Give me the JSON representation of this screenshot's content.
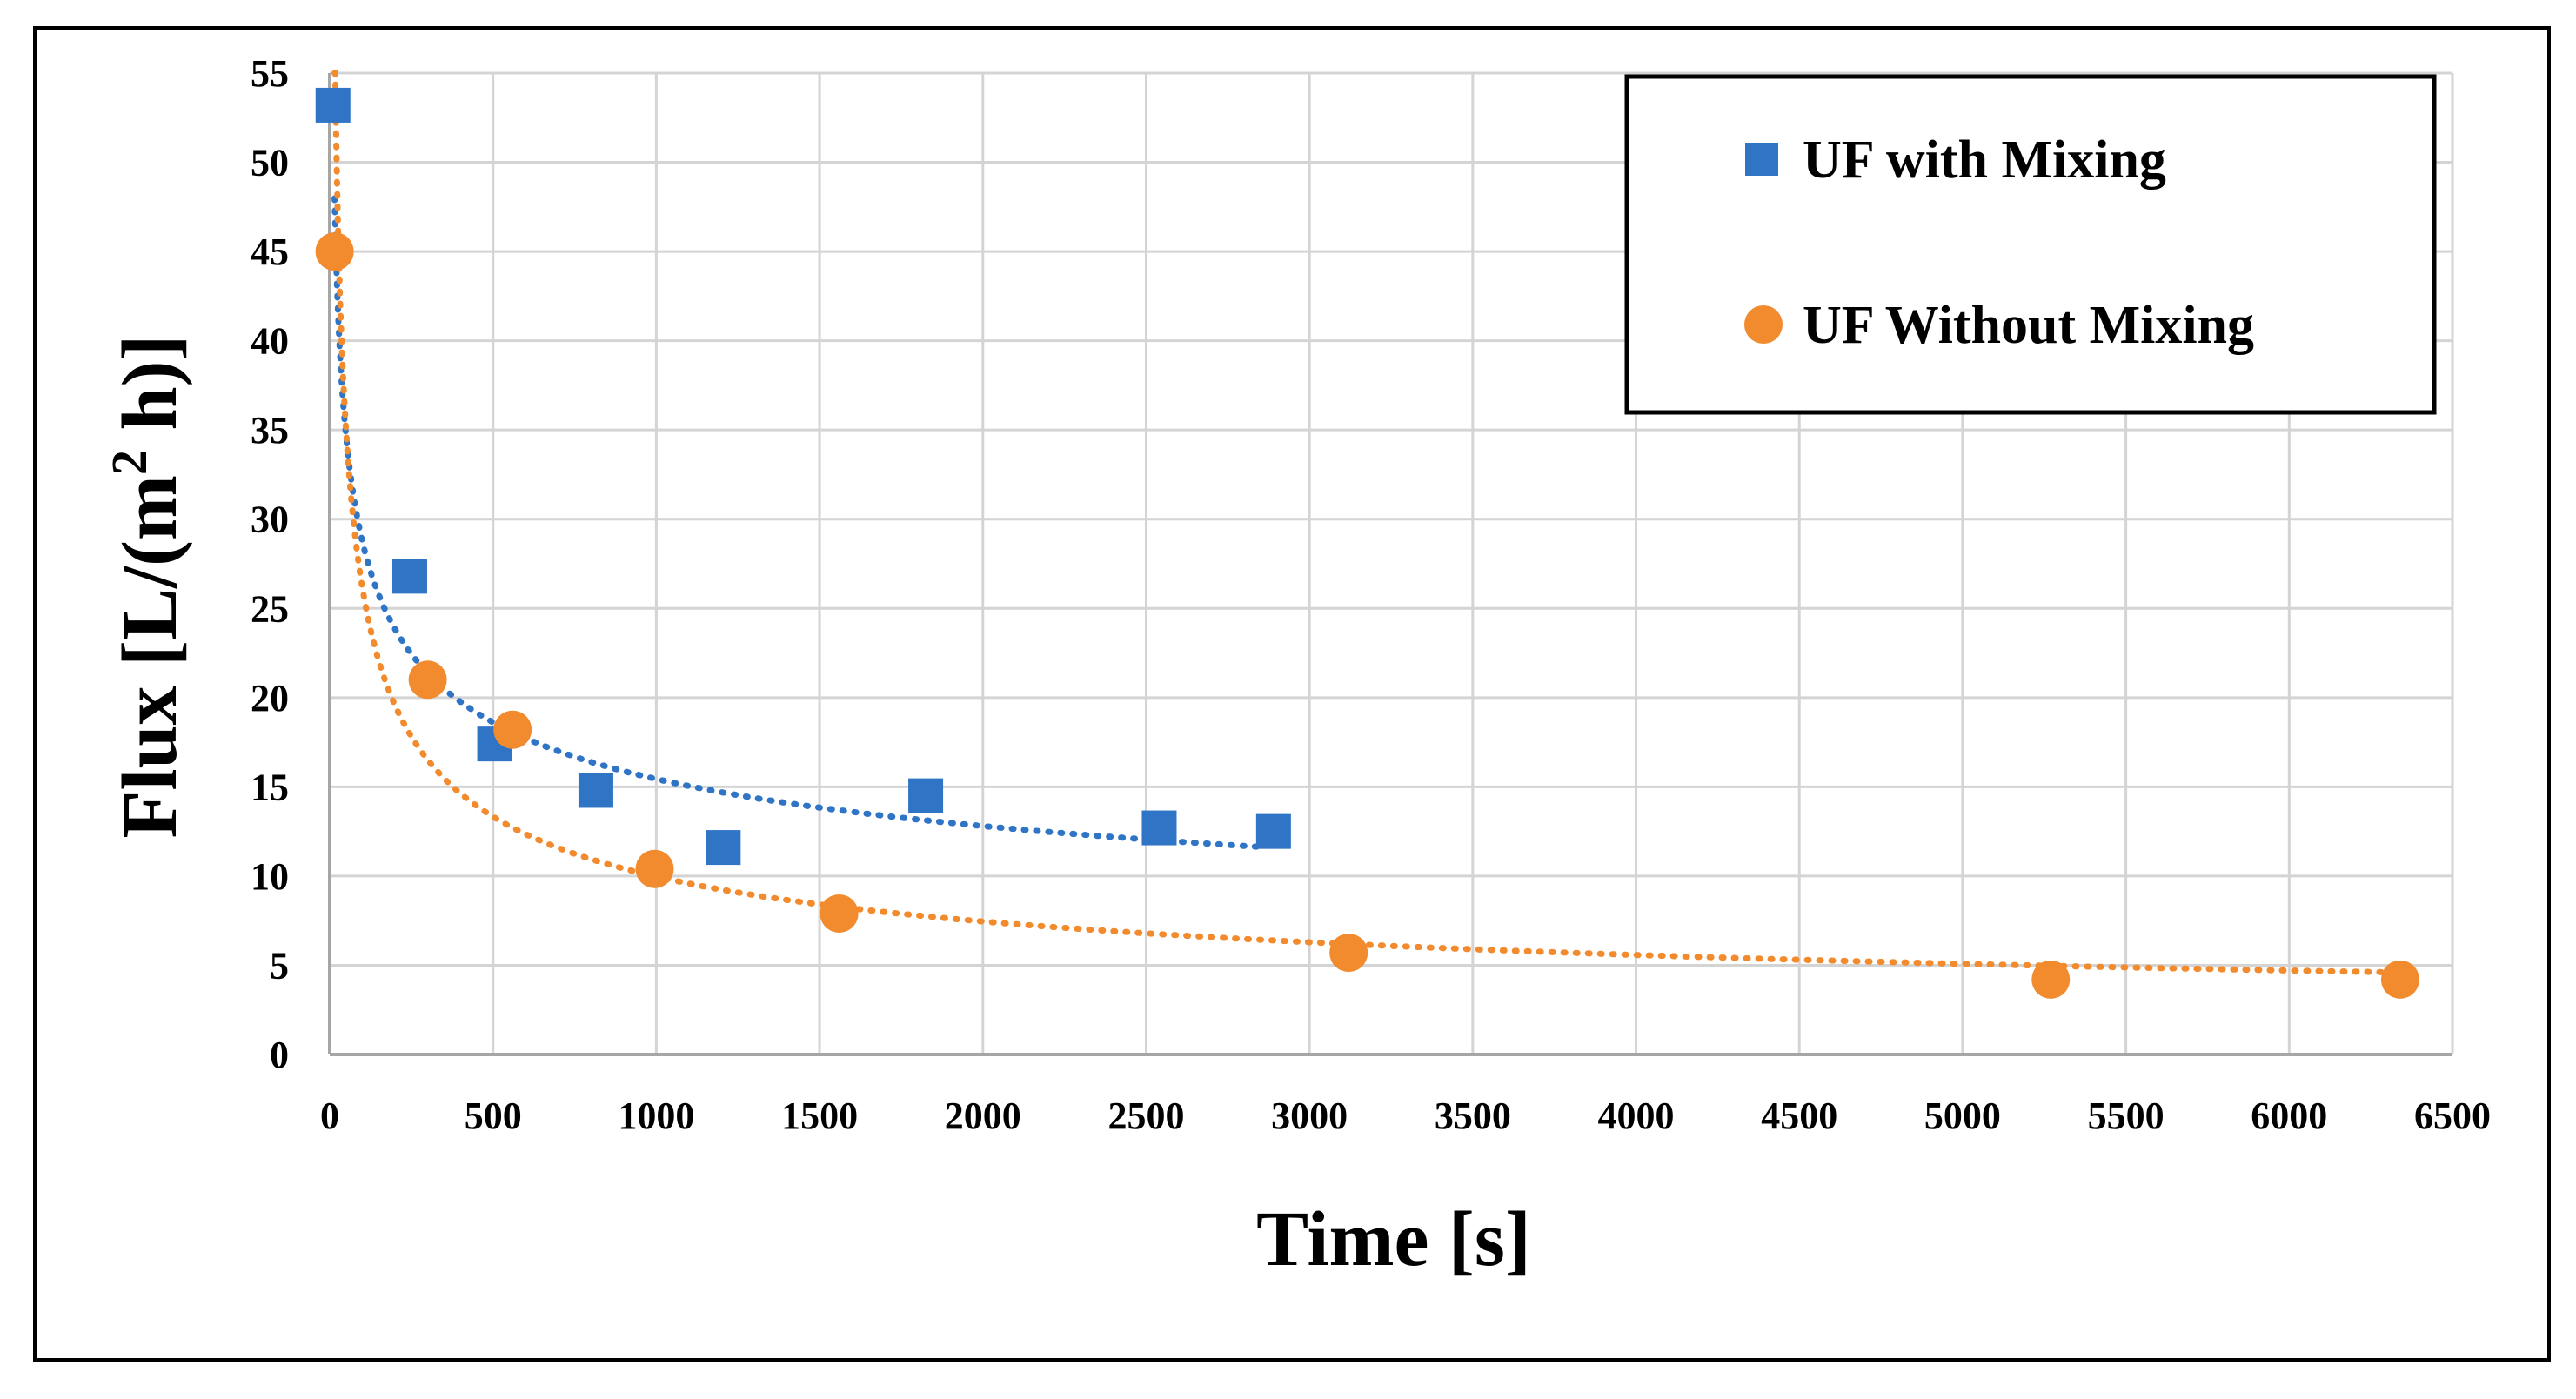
{
  "chart_data": {
    "type": "scatter",
    "title": "",
    "xlabel": "Time [s]",
    "ylabel_parts": {
      "prefix": "Flux  [L/(m",
      "sup": "2",
      "suffix": " h)]"
    },
    "xlim": [
      0,
      6500
    ],
    "ylim": [
      0,
      55
    ],
    "x_ticks": [
      0,
      500,
      1000,
      1500,
      2000,
      2500,
      3000,
      3500,
      4000,
      4500,
      5000,
      5500,
      6000,
      6500
    ],
    "y_ticks": [
      0,
      5,
      10,
      15,
      20,
      25,
      30,
      35,
      40,
      45,
      50,
      55
    ],
    "grid": true,
    "legend_position": "top-right",
    "series": [
      {
        "name": "UF with Mixing",
        "marker": "square",
        "color": "#2F74C5",
        "points": [
          [
            10,
            53.2
          ],
          [
            245,
            26.8
          ],
          [
            505,
            17.4
          ],
          [
            815,
            14.8
          ],
          [
            1205,
            11.6
          ],
          [
            1825,
            14.5
          ],
          [
            2540,
            12.7
          ],
          [
            2890,
            12.5
          ]
        ],
        "trendline": {
          "type": "power",
          "x_range": [
            15,
            2850
          ],
          "color": "#2F74C5"
        }
      },
      {
        "name": "UF Without Mixing",
        "marker": "circle",
        "color": "#F28A2E",
        "points": [
          [
            15,
            45.0
          ],
          [
            300,
            21.0
          ],
          [
            560,
            18.2
          ],
          [
            995,
            10.4
          ],
          [
            1560,
            7.9
          ],
          [
            3120,
            5.7
          ],
          [
            5270,
            4.2
          ],
          [
            6340,
            4.2
          ]
        ],
        "trendline": {
          "type": "power",
          "x_range": [
            15,
            6340
          ],
          "color": "#F28A2E"
        }
      }
    ]
  }
}
